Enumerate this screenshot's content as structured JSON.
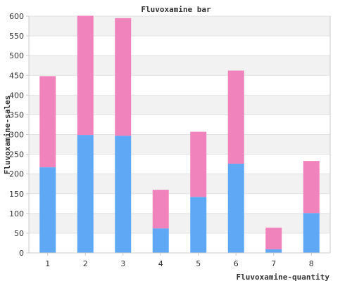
{
  "chart_data": {
    "type": "bar",
    "stacked": true,
    "title": "Fluvoxamine bar",
    "xlabel": "Fluvoxamine-quantity",
    "ylabel": "Fluvoxamine-sales",
    "categories": [
      "1",
      "2",
      "3",
      "4",
      "5",
      "6",
      "7",
      "8"
    ],
    "series": [
      {
        "color": "#5fa8f5",
        "values": [
          217,
          299,
          297,
          62,
          142,
          226,
          9,
          101
        ]
      },
      {
        "color": "#f083bb",
        "values": [
          231,
          302,
          298,
          98,
          165,
          236,
          55,
          132
        ]
      }
    ],
    "ylim": [
      0,
      600
    ],
    "yticks": [
      0,
      50,
      100,
      150,
      200,
      250,
      300,
      350,
      400,
      450,
      500,
      550,
      600
    ],
    "grid": true,
    "legend": "none"
  }
}
